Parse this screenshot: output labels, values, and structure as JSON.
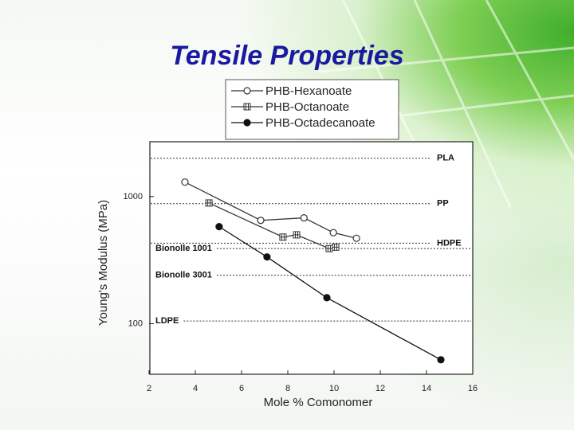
{
  "title": "Tensile Properties",
  "chart_data": {
    "type": "line",
    "xlabel": "Mole % Comonomer",
    "ylabel": "Young's Modulus (MPa)",
    "xlim": [
      2,
      16
    ],
    "xticks": [
      2,
      4,
      6,
      8,
      10,
      12,
      14,
      16
    ],
    "ylim": [
      40,
      2700
    ],
    "yticks": [
      100,
      1000
    ],
    "y_scale": "log",
    "series": [
      {
        "name": "PHB-Hexanoate",
        "color": "#333333",
        "marker": "open-circle",
        "x": [
          3.55,
          6.83,
          8.7,
          9.97,
          10.97
        ],
        "values": [
          1300,
          650,
          680,
          520,
          470
        ]
      },
      {
        "name": "PHB-Octanoate",
        "color": "#333333",
        "marker": "crossed-square",
        "x": [
          4.59,
          7.79,
          8.38,
          9.79,
          10.07
        ],
        "values": [
          890,
          480,
          500,
          390,
          400
        ]
      },
      {
        "name": "PHB-Octadecanoate",
        "color": "#111111",
        "marker": "filled-circle",
        "x": [
          5.03,
          7.1,
          9.69,
          14.62
        ],
        "values": [
          580,
          335,
          160,
          52
        ]
      }
    ],
    "reference_lines": [
      {
        "label": "PLA",
        "value": 2000,
        "side": "right"
      },
      {
        "label": "PP",
        "value": 880,
        "side": "right"
      },
      {
        "label": "HDPE",
        "value": 430,
        "side": "right"
      },
      {
        "label": "Bionolle 1001",
        "value": 390,
        "side": "left"
      },
      {
        "label": "Bionolle 3001",
        "value": 240,
        "side": "left"
      },
      {
        "label": "LDPE",
        "value": 105,
        "side": "left"
      }
    ]
  }
}
